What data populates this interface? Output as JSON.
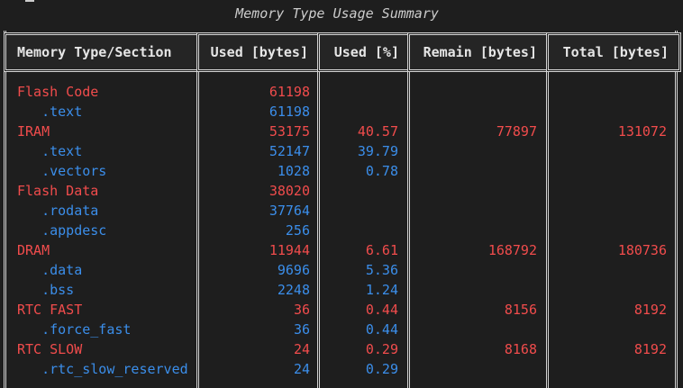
{
  "title": "Memory Type Usage Summary",
  "columns": [
    "Memory Type/Section",
    "Used [bytes]",
    "Used [%]",
    "Remain [bytes]",
    "Total [bytes]"
  ],
  "colors": {
    "memory_type": "#f14c4c",
    "section": "#3b8eea",
    "border": "#d4d4d4",
    "background": "#1e1e1e"
  },
  "rows": [
    {
      "kind": "memory_type",
      "name": "Flash Code",
      "used": "61198",
      "pct": "",
      "remain": "",
      "total": ""
    },
    {
      "kind": "section",
      "name": "   .text",
      "used": "61198",
      "pct": "",
      "remain": "",
      "total": ""
    },
    {
      "kind": "memory_type",
      "name": "IRAM",
      "used": "53175",
      "pct": "40.57",
      "remain": "77897",
      "total": "131072"
    },
    {
      "kind": "section",
      "name": "   .text",
      "used": "52147",
      "pct": "39.79",
      "remain": "",
      "total": ""
    },
    {
      "kind": "section",
      "name": "   .vectors",
      "used": "1028",
      "pct": "0.78",
      "remain": "",
      "total": ""
    },
    {
      "kind": "memory_type",
      "name": "Flash Data",
      "used": "38020",
      "pct": "",
      "remain": "",
      "total": ""
    },
    {
      "kind": "section",
      "name": "   .rodata",
      "used": "37764",
      "pct": "",
      "remain": "",
      "total": ""
    },
    {
      "kind": "section",
      "name": "   .appdesc",
      "used": "256",
      "pct": "",
      "remain": "",
      "total": ""
    },
    {
      "kind": "memory_type",
      "name": "DRAM",
      "used": "11944",
      "pct": "6.61",
      "remain": "168792",
      "total": "180736"
    },
    {
      "kind": "section",
      "name": "   .data",
      "used": "9696",
      "pct": "5.36",
      "remain": "",
      "total": ""
    },
    {
      "kind": "section",
      "name": "   .bss",
      "used": "2248",
      "pct": "1.24",
      "remain": "",
      "total": ""
    },
    {
      "kind": "memory_type",
      "name": "RTC FAST",
      "used": "36",
      "pct": "0.44",
      "remain": "8156",
      "total": "8192"
    },
    {
      "kind": "section",
      "name": "   .force_fast",
      "used": "36",
      "pct": "0.44",
      "remain": "",
      "total": ""
    },
    {
      "kind": "memory_type",
      "name": "RTC SLOW",
      "used": "24",
      "pct": "0.29",
      "remain": "8168",
      "total": "8192"
    },
    {
      "kind": "section",
      "name": "   .rtc_slow_reserved",
      "used": "24",
      "pct": "0.29",
      "remain": "",
      "total": ""
    }
  ]
}
